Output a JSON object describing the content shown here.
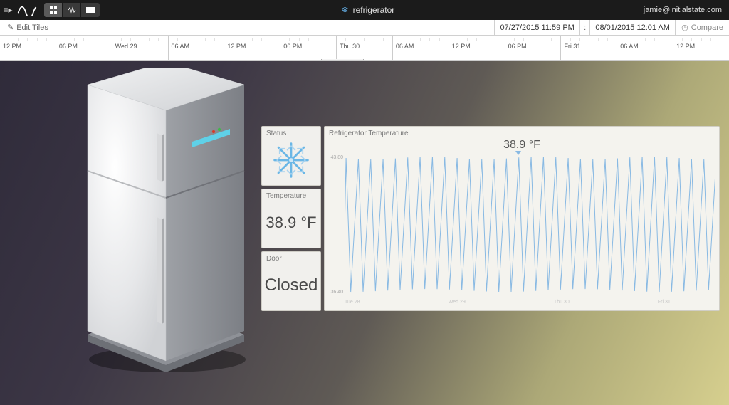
{
  "topbar": {
    "title": "refrigerator",
    "user": "jamie@initialstate.com"
  },
  "subbar": {
    "edit_tiles": "Edit Tiles",
    "date_start": "07/27/2015 11:59 PM",
    "date_end": "08/01/2015 12:01 AM",
    "compare": "Compare"
  },
  "ruler": {
    "labels": [
      "12 PM",
      "06 PM",
      "Wed 29",
      "06 AM",
      "12 PM",
      "06 PM",
      "Thu 30",
      "06 AM",
      "12 PM",
      "06 PM",
      "Fri 31",
      "06 AM",
      "12 PM"
    ],
    "handle_left_pct": 47
  },
  "tiles": {
    "status": {
      "label": "Status",
      "icon": "snow"
    },
    "temperature": {
      "label": "Temperature",
      "value": "38.9 °F"
    },
    "door": {
      "label": "Door",
      "value": "Closed"
    }
  },
  "chart": {
    "title": "Refrigerator Temperature",
    "current_value": "38.9 °F",
    "y_max_label": "43.80",
    "y_min_label": "36.40",
    "cursor_pct": 47,
    "x_labels": [
      "Tue 28",
      "",
      "Wed 29",
      "",
      "Thu 30",
      "",
      "Fri 31",
      ""
    ],
    "cycles": 30,
    "line_color": "#88b9e3",
    "background_color": "#f4f3ee",
    "ylim": [
      36.4,
      43.8
    ]
  },
  "colors": {
    "topbar_bg": "#1b1b1b",
    "tile_bg": "#f1f0ed"
  }
}
